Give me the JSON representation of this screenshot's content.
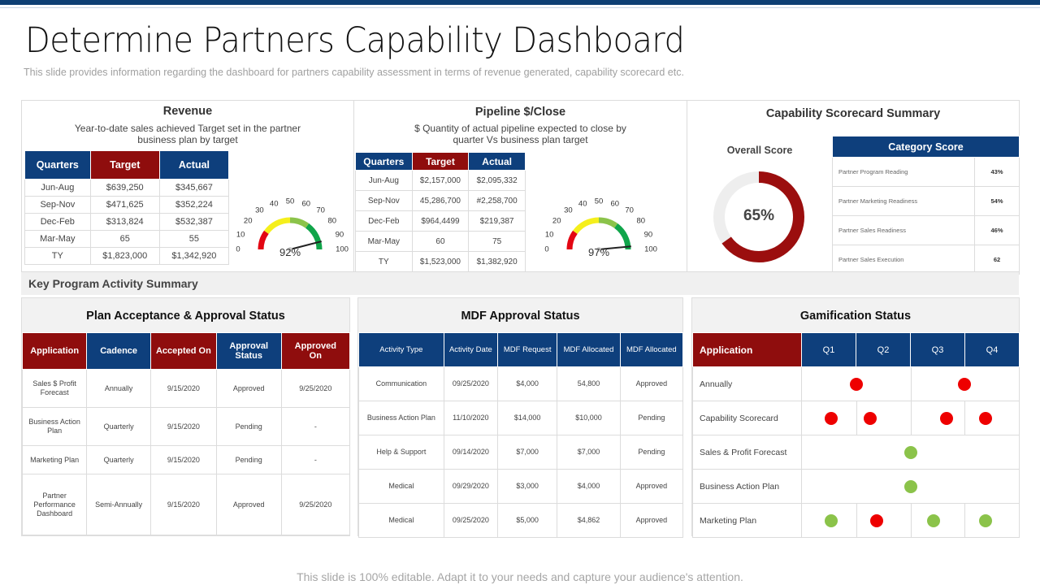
{
  "header": {
    "title": "Determine Partners Capability Dashboard",
    "subtitle": "This slide provides  information regarding  the dashboard for partners capability assessment in terms of revenue  generated,  capability scorecard etc."
  },
  "revenue": {
    "title": "Revenue",
    "description_line1": "Year-to-date sales achieved Target set in the partner",
    "description_line2": "business plan by target",
    "columns": [
      "Quarters",
      "Target",
      "Actual"
    ],
    "rows": [
      [
        "Jun-Aug",
        "$639,250",
        "$345,667"
      ],
      [
        "Sep-Nov",
        "$471,625",
        "$352,224"
      ],
      [
        "Dec-Feb",
        "$313,824",
        "$532,387"
      ],
      [
        "Mar-May",
        "65",
        "55"
      ],
      [
        "TY",
        "$1,823,000",
        "$1,342,920"
      ]
    ],
    "gauge": {
      "value": 92,
      "label": "92%",
      "ticks": [
        "0",
        "10",
        "20",
        "30",
        "40",
        "50",
        "60",
        "70",
        "80",
        "90",
        "100"
      ]
    }
  },
  "pipeline": {
    "title": "Pipeline $/Close",
    "description_line1": "$ Quantity of actual pipeline expected to close by",
    "description_line2": "quarter Vs  business plan target",
    "columns": [
      "Quarters",
      "Target",
      "Actual"
    ],
    "rows": [
      [
        "Jun-Aug",
        "$2,157,000",
        "$2,095,332"
      ],
      [
        "Sep-Nov",
        "45,286,700",
        "#2,258,700"
      ],
      [
        "Dec-Feb",
        "$964,4499",
        "$219,387"
      ],
      [
        "Mar-May",
        "60",
        "75"
      ],
      [
        "TY",
        "$1,523,000",
        "$1,382,920"
      ]
    ],
    "gauge": {
      "value": 97,
      "label": "97%",
      "ticks": [
        "0",
        "10",
        "20",
        "30",
        "40",
        "50",
        "60",
        "70",
        "80",
        "90",
        "100"
      ]
    }
  },
  "scorecard": {
    "title": "Capability Scorecard Summary",
    "overall_label": "Overall Score",
    "overall_value": "65%",
    "overall_percent": 65,
    "accent_color": "#9b0e0e",
    "category_header": "Category Score",
    "categories": [
      [
        "Partner Program Reading",
        "43%"
      ],
      [
        "Partner Marketing Readiness",
        "54%"
      ],
      [
        "Partner Sales Readiness",
        "46%"
      ],
      [
        "Partner Sales Execution",
        "62"
      ]
    ]
  },
  "key_program": {
    "title": "Key Program Activity  Summary"
  },
  "plan_acceptance": {
    "title": "Plan Acceptance & Approval  Status",
    "columns": [
      "Application",
      "Cadence",
      "Accepted On",
      "Approval Status",
      "Approved On"
    ],
    "rows": [
      [
        "Sales $ Profit Forecast",
        "Annually",
        "9/15/2020",
        "Approved",
        "9/25/2020"
      ],
      [
        "Business Action Plan",
        "Quarterly",
        "9/15/2020",
        "Pending",
        "-"
      ],
      [
        "Marketing  Plan",
        "Quarterly",
        "9/15/2020",
        "Pending",
        "-"
      ],
      [
        "Partner Performance Dashboard",
        "Semi-Annually",
        "9/15/2020",
        "Approved",
        "9/25/2020"
      ]
    ]
  },
  "mdf": {
    "title": "MDF Approval  Status",
    "columns": [
      "Activity Type",
      "Activity Date",
      "MDF Request",
      "MDF Allocated",
      "MDF Allocated"
    ],
    "rows": [
      [
        "Communication",
        "09/25/2020",
        "$4,000",
        "54,800",
        "Approved"
      ],
      [
        "Business Action Plan",
        "11/10/2020",
        "$14,000",
        "$10,000",
        "Pending"
      ],
      [
        "Help & Support",
        "09/14/2020",
        "$7,000",
        "$7,000",
        "Pending"
      ],
      [
        "Medical",
        "09/29/2020",
        "$3,000",
        "$4,000",
        "Approved"
      ],
      [
        "Medical",
        "09/25/2020",
        "$5,000",
        "$4,862",
        "Approved"
      ]
    ]
  },
  "gamification": {
    "title": "Gamification Status",
    "columns": [
      "Application",
      "Q1",
      "Q2",
      "Q3",
      "Q4"
    ],
    "rows": [
      {
        "label": "Annually",
        "dots": [
          {
            "pos": 0.25,
            "color": "red"
          },
          {
            "pos": 0.75,
            "color": "red"
          }
        ]
      },
      {
        "label": "Capability Scorecard",
        "dots": [
          {
            "pos": 0.135,
            "color": "red"
          },
          {
            "pos": 0.315,
            "color": "red"
          },
          {
            "pos": 0.665,
            "color": "red"
          },
          {
            "pos": 0.845,
            "color": "red"
          }
        ]
      },
      {
        "label": "Sales & Profit Forecast",
        "dots": [
          {
            "pos": 0.5,
            "color": "green"
          }
        ]
      },
      {
        "label": "Business Action Plan",
        "dots": [
          {
            "pos": 0.5,
            "color": "green"
          }
        ]
      },
      {
        "label": "Marketing Plan",
        "dots": [
          {
            "pos": 0.135,
            "color": "green"
          },
          {
            "pos": 0.345,
            "color": "red"
          },
          {
            "pos": 0.605,
            "color": "green"
          },
          {
            "pos": 0.845,
            "color": "green"
          }
        ]
      }
    ]
  },
  "footer": {
    "text": "This slide is 100% editable. Adapt it to your needs and capture your audience's attention."
  }
}
